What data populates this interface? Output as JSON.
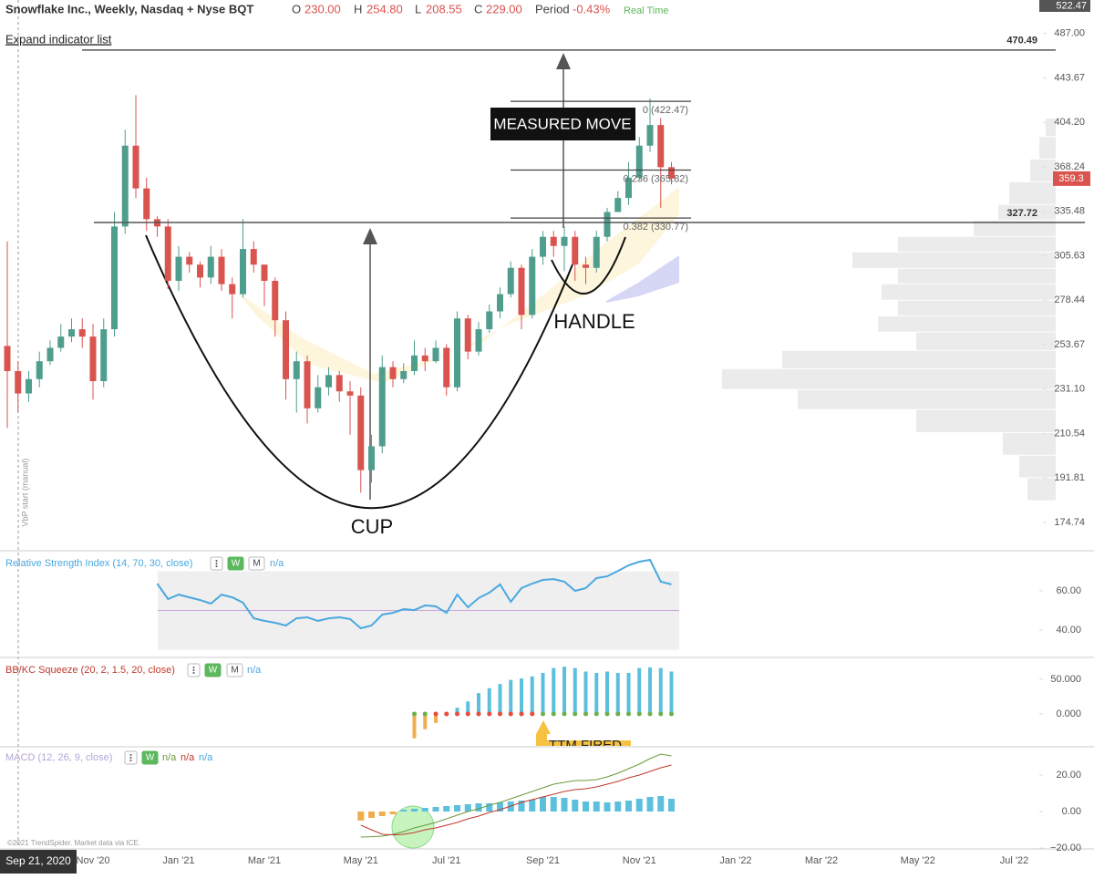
{
  "chart_data": [
    {
      "type": "candlestick",
      "title": "Snowflake Inc., Weekly, Nasdaq + Nyse BQT",
      "header": [
        {
          "label": "O",
          "value": "230.00"
        },
        {
          "label": "H",
          "value": "254.80"
        },
        {
          "label": "L",
          "value": "208.55"
        },
        {
          "label": "C",
          "value": "229.00"
        },
        {
          "label": "Period",
          "value": "-0.43%"
        }
      ],
      "status": "Real Time",
      "expand_label": "Expand indicator list",
      "vbp_label": "VbP start (manual)",
      "crosshair_date": "Sep 21, 2020",
      "copyright": "©2021 TrendSpider. Market data via ICE.",
      "annotations": [
        "MEASURED MOVE",
        "CUP",
        "HANDLE"
      ],
      "categories": [
        null,
        null,
        null,
        null,
        null,
        null,
        null,
        null,
        "Nov '20",
        null,
        null,
        null,
        null,
        null,
        null,
        null,
        "Jan '21",
        null,
        null,
        null,
        null,
        null,
        null,
        null,
        "Mar '21",
        null,
        null,
        null,
        null,
        null,
        null,
        null,
        null,
        "May '21",
        null,
        null,
        null,
        null,
        null,
        null,
        null,
        "Jul '21",
        null,
        null,
        null,
        null,
        null,
        null,
        null,
        null,
        "Sep '21",
        null,
        null,
        null,
        null,
        null,
        null,
        null,
        null,
        "Nov '21",
        null,
        null,
        null,
        null,
        null,
        null,
        null,
        null,
        "Jan '22",
        null,
        null,
        null,
        null,
        null,
        null,
        null,
        "Mar '22",
        null,
        null,
        null,
        null,
        null,
        null,
        null,
        null,
        "May '22",
        null,
        null,
        null,
        null,
        null,
        null,
        null,
        null,
        "Jul '22"
      ],
      "open": [
        253,
        240,
        229,
        236,
        245,
        252,
        258,
        262,
        258,
        235,
        262,
        325,
        385,
        352,
        330,
        325,
        290,
        305,
        300,
        292,
        305,
        288,
        282,
        310,
        300,
        290,
        267,
        236,
        245,
        222,
        232,
        238,
        230,
        228,
        195,
        205,
        242,
        236,
        240,
        248,
        245,
        252,
        232,
        268,
        250,
        262,
        272,
        282,
        298,
        270,
        305,
        318,
        312,
        318,
        300,
        298,
        318,
        335,
        345,
        360,
        385,
        402,
        368,
        null,
        null,
        null,
        null,
        null,
        null,
        null,
        null,
        null,
        null,
        null,
        null,
        null,
        null,
        null,
        null,
        null,
        null,
        null,
        null,
        null,
        null,
        null,
        null,
        null,
        null,
        null,
        null,
        null,
        null,
        null,
        null
      ],
      "high": [
        315,
        245,
        240,
        250,
        256,
        265,
        268,
        268,
        265,
        268,
        335,
        398,
        428,
        360,
        332,
        330,
        312,
        308,
        302,
        312,
        310,
        292,
        330,
        315,
        300,
        292,
        272,
        250,
        248,
        238,
        242,
        240,
        235,
        232,
        210,
        248,
        245,
        244,
        256,
        252,
        256,
        254,
        272,
        270,
        266,
        276,
        286,
        302,
        300,
        310,
        322,
        322,
        325,
        322,
        305,
        322,
        338,
        350,
        372,
        392,
        425,
        408,
        372,
        null,
        null,
        null,
        null,
        null,
        null,
        null,
        null,
        null,
        null,
        null,
        null,
        null,
        null,
        null,
        null,
        null,
        null,
        null,
        null,
        null,
        null,
        null,
        null,
        null,
        null,
        null,
        null,
        null,
        null,
        null,
        null
      ],
      "low": [
        213,
        220,
        225,
        232,
        243,
        250,
        255,
        252,
        226,
        232,
        258,
        320,
        345,
        322,
        318,
        285,
        284,
        295,
        286,
        288,
        284,
        268,
        280,
        295,
        275,
        258,
        226,
        220,
        215,
        220,
        228,
        225,
        210,
        186,
        190,
        202,
        232,
        234,
        238,
        240,
        244,
        228,
        230,
        246,
        248,
        260,
        268,
        280,
        262,
        268,
        300,
        305,
        296,
        290,
        288,
        295,
        315,
        335,
        340,
        358,
        380,
        338,
        355,
        null,
        null,
        null,
        null,
        null,
        null,
        null,
        null,
        null,
        null,
        null,
        null,
        null,
        null,
        null,
        null,
        null,
        null,
        null,
        null,
        null,
        null,
        null,
        null,
        null,
        null,
        null,
        null,
        null,
        null,
        null,
        null
      ],
      "close": [
        240,
        229,
        236,
        245,
        252,
        258,
        262,
        258,
        235,
        262,
        325,
        385,
        352,
        330,
        325,
        290,
        305,
        300,
        292,
        305,
        288,
        282,
        310,
        300,
        290,
        267,
        236,
        245,
        222,
        232,
        238,
        230,
        228,
        195,
        205,
        242,
        236,
        240,
        248,
        245,
        252,
        232,
        268,
        250,
        262,
        272,
        282,
        298,
        270,
        305,
        318,
        312,
        318,
        300,
        298,
        318,
        335,
        345,
        360,
        385,
        402,
        368,
        359.3,
        null,
        null,
        null,
        null,
        null,
        null,
        null,
        null,
        null,
        null,
        null,
        null,
        null,
        null,
        null,
        null,
        null,
        null,
        null,
        null,
        null,
        null,
        null,
        null,
        null,
        null,
        null,
        null,
        null,
        null,
        null,
        null
      ],
      "up_color": "#4f9d8d",
      "down_color": "#d9534f",
      "log_scale": true,
      "ylim": [
        165,
        522.47
      ],
      "yticks": [
        174.74,
        191.81,
        210.54,
        {
          "value": 231.1,
          "label": "231.10"
        },
        253.67,
        278.44,
        305.63,
        335.48,
        368.24,
        {
          "value": 404.2,
          "label": "404.20"
        },
        443.67,
        {
          "value": 487,
          "label": "487.00"
        }
      ],
      "hlines": [
        470.49,
        327.72
      ],
      "fib_levels": [
        {
          "value": 422.47,
          "label": "0 (422.47)"
        },
        {
          "value": 365.82,
          "label": "0.236 (365.82)"
        },
        {
          "value": 330.77,
          "label": "0.382 (330.77)"
        }
      ],
      "volume_profile": {
        "color": "#ebebeb",
        "bins": [
          182.7,
          191.7,
          201,
          210.8,
          221.2,
          230.7,
          241,
          250.4,
          260.2,
          269.2,
          278.2,
          287.9,
          297.4,
          307.8,
          318,
          329,
          340,
          356.6,
          374,
          392,
          407.5
        ],
        "values": [
          31,
          40,
          58,
          153,
          283,
          366,
          300,
          153,
          195,
          173,
          191,
          173,
          223,
          173,
          90,
          63,
          51,
          28,
          18,
          11
        ]
      }
    },
    {
      "type": "line",
      "title": "Relative Strength Index (14, 70, 30, close)",
      "buttons": [
        "W",
        "M"
      ],
      "status": "n/a",
      "color": "#4aa8e0",
      "values": [
        null,
        null,
        null,
        null,
        null,
        null,
        null,
        null,
        null,
        null,
        null,
        null,
        null,
        null,
        63.7,
        55.8,
        58.1,
        56.7,
        55.3,
        53.5,
        58.1,
        56.7,
        54.0,
        46.0,
        44.7,
        43.7,
        42.3,
        46.0,
        46.5,
        44.7,
        46.0,
        46.5,
        45.6,
        40.9,
        42.3,
        47.9,
        48.8,
        50.7,
        50.2,
        52.6,
        52.1,
        48.8,
        58.1,
        51.6,
        56.3,
        59.1,
        63.3,
        54.4,
        61.4,
        63.7,
        65.6,
        66.0,
        64.7,
        60.0,
        61.4,
        66.5,
        67.4,
        70.2,
        73.0,
        74.9,
        75.8,
        64.7,
        63.3,
        null,
        null,
        null,
        null,
        null,
        null,
        null,
        null,
        null,
        null,
        null,
        null,
        null,
        null,
        null,
        null,
        null,
        null,
        null,
        null,
        null,
        null,
        null,
        null,
        null,
        null,
        null,
        null,
        null,
        null,
        null,
        null
      ],
      "band": [
        30,
        70
      ],
      "midline": 50,
      "ylim": [
        26.5,
        80
      ],
      "yticks": [
        {
          "value": 40,
          "label": "40.00"
        },
        {
          "value": 60,
          "label": "60.00"
        }
      ]
    },
    {
      "type": "bar",
      "title": "BB/KC Squeeze (20, 2, 1.5, 20, close)",
      "buttons": [
        "W",
        "M"
      ],
      "status": "n/a",
      "annotation": "TTM FIRED",
      "positive_color": "#5bc0de",
      "negative_color": "#f0ad4e",
      "values": [
        null,
        null,
        null,
        null,
        null,
        null,
        null,
        null,
        null,
        null,
        null,
        null,
        null,
        null,
        null,
        null,
        null,
        null,
        null,
        null,
        null,
        null,
        null,
        null,
        null,
        null,
        null,
        null,
        null,
        null,
        null,
        null,
        null,
        null,
        null,
        null,
        null,
        null,
        -35,
        -22,
        -13,
        -3,
        9,
        18,
        30,
        37,
        43,
        49,
        51,
        54,
        59,
        66,
        68,
        66,
        61,
        59,
        61,
        59,
        59,
        66,
        67,
        66,
        61,
        null,
        null,
        null,
        null,
        null,
        null,
        null,
        null,
        null,
        null,
        null,
        null,
        null,
        null,
        null,
        null,
        null,
        null,
        null,
        null,
        null,
        null,
        null,
        null,
        null,
        null,
        null,
        null,
        null,
        null,
        null,
        null
      ],
      "dot_colors": [
        null,
        null,
        null,
        null,
        null,
        null,
        null,
        null,
        null,
        null,
        null,
        null,
        null,
        null,
        null,
        null,
        null,
        null,
        null,
        null,
        null,
        null,
        null,
        null,
        null,
        null,
        null,
        null,
        null,
        null,
        null,
        null,
        null,
        null,
        null,
        null,
        null,
        null,
        "#6ab04c",
        "#6ab04c",
        "#e74c3c",
        "#e74c3c",
        "#e74c3c",
        "#e74c3c",
        "#e74c3c",
        "#e74c3c",
        "#e74c3c",
        "#e74c3c",
        "#e74c3c",
        "#e74c3c",
        "#6ab04c",
        "#6ab04c",
        "#6ab04c",
        "#6ab04c",
        "#6ab04c",
        "#6ab04c",
        "#6ab04c",
        "#6ab04c",
        "#6ab04c",
        "#6ab04c",
        "#6ab04c",
        "#6ab04c",
        "#6ab04c",
        null,
        null,
        null,
        null,
        null,
        null,
        null,
        null,
        null,
        null,
        null,
        null,
        null,
        null,
        null,
        null,
        null,
        null,
        null,
        null,
        null,
        null,
        null,
        null,
        null,
        null,
        null,
        null,
        null,
        null,
        null,
        null
      ],
      "ylim": [
        -46,
        80
      ],
      "yticks": [
        {
          "value": 0,
          "label": "0.000"
        },
        {
          "value": 50,
          "label": "50.000"
        }
      ]
    },
    {
      "type": "macd",
      "title": "MACD (12, 26, 9, close)",
      "buttons": [
        "W"
      ],
      "status": "n/a",
      "status_color": "#4aa8e0",
      "histogram": {
        "positive_color": "#5bc0de",
        "negative_color": "#f0ad4e",
        "values": [
          null,
          null,
          null,
          null,
          null,
          null,
          null,
          null,
          null,
          null,
          null,
          null,
          null,
          null,
          null,
          null,
          null,
          null,
          null,
          null,
          null,
          null,
          null,
          null,
          null,
          null,
          null,
          null,
          null,
          null,
          null,
          null,
          null,
          -5,
          -3.5,
          -2.5,
          -1.5,
          1,
          1.5,
          2,
          2.5,
          3,
          3.5,
          4,
          4.5,
          4.5,
          5,
          5.5,
          6,
          6.5,
          8,
          8,
          7.5,
          6.5,
          5.5,
          5.5,
          5,
          5.5,
          6,
          7,
          8,
          8.5,
          7,
          null,
          null,
          null,
          null,
          null,
          null,
          null,
          null,
          null,
          null,
          null,
          null,
          null,
          null,
          null,
          null,
          null,
          null,
          null,
          null,
          null,
          null,
          null,
          null,
          null,
          null,
          null,
          null,
          null,
          null,
          null,
          null
        ]
      },
      "series": [
        {
          "name": "n/a",
          "color": "#6a9a3a",
          "values": [
            null,
            null,
            null,
            null,
            null,
            null,
            null,
            null,
            null,
            null,
            null,
            null,
            null,
            null,
            null,
            null,
            null,
            null,
            null,
            null,
            null,
            null,
            null,
            null,
            null,
            null,
            null,
            null,
            null,
            null,
            null,
            null,
            null,
            -14,
            -13.8,
            -13.5,
            -12.5,
            -11,
            -9,
            -7.5,
            -6,
            -4,
            -2,
            0,
            1.5,
            3.5,
            5,
            7,
            9,
            11,
            13,
            15,
            16,
            17,
            17,
            17.5,
            19,
            21,
            23.5,
            26,
            29,
            31.5,
            30.5,
            null,
            null,
            null,
            null,
            null,
            null,
            null,
            null,
            null,
            null,
            null,
            null,
            null,
            null,
            null,
            null,
            null,
            null,
            null,
            null,
            null,
            null,
            null,
            null,
            null,
            null,
            null,
            null,
            null,
            null,
            null,
            null
          ]
        },
        {
          "name": "n/a",
          "color": "#c0392b",
          "values": [
            null,
            null,
            null,
            null,
            null,
            null,
            null,
            null,
            null,
            null,
            null,
            null,
            null,
            null,
            null,
            null,
            null,
            null,
            null,
            null,
            null,
            null,
            null,
            null,
            null,
            null,
            null,
            null,
            null,
            null,
            null,
            null,
            null,
            -7.5,
            -10,
            -12.5,
            -12.8,
            -12.5,
            -11.5,
            -10,
            -9,
            -7.5,
            -6,
            -4,
            -2.5,
            -0.5,
            1,
            3,
            5,
            6.5,
            8,
            9.5,
            11,
            12,
            12.5,
            13.5,
            15,
            16.5,
            18.5,
            20,
            22,
            24,
            25.5,
            null,
            null,
            null,
            null,
            null,
            null,
            null,
            null,
            null,
            null,
            null,
            null,
            null,
            null,
            null,
            null,
            null,
            null,
            null,
            null,
            null,
            null,
            null,
            null,
            null,
            null,
            null,
            null,
            null,
            null,
            null,
            null
          ]
        }
      ],
      "ylim": [
        -22.5,
        35
      ],
      "yticks": [
        {
          "value": -20,
          "label": "−20.00"
        },
        {
          "value": 0,
          "label": "0.00"
        },
        {
          "value": 20,
          "label": "20.00"
        }
      ]
    }
  ]
}
